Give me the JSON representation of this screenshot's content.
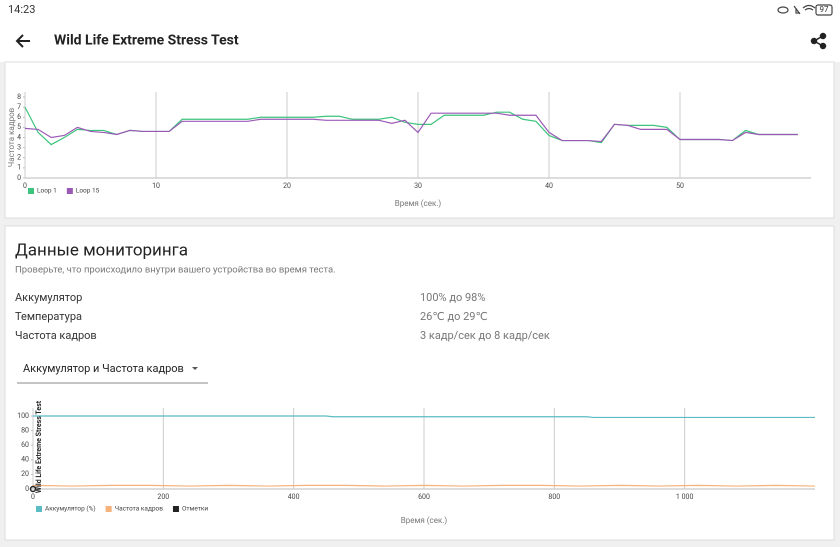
{
  "status_bar": {
    "time": "14:23",
    "battery": "97"
  },
  "header": {
    "title": "Wild Life Extreme Stress Test"
  },
  "monitoring": {
    "title": "Данные мониторинга",
    "subtitle": "Проверьте, что происходило внутри вашего устройства во время теста.",
    "rows": [
      [
        "Аккумулятор",
        "100% до 98%"
      ],
      [
        "Температура",
        "26℃ до 29℃"
      ],
      [
        "Частота кадров",
        "3 кадр/сек до 8 кадр/сек"
      ]
    ],
    "dropdown": "Аккумулятор и Частота кадров"
  },
  "chart_data": [
    {
      "type": "line",
      "x_label": "Время (сек.)",
      "y_label": "Частота кадров",
      "grid": true,
      "x": [
        0,
        1,
        2,
        3,
        4,
        5,
        6,
        7,
        8,
        9,
        10,
        11,
        12,
        13,
        14,
        15,
        16,
        17,
        18,
        19,
        20,
        21,
        22,
        23,
        24,
        25,
        26,
        27,
        28,
        29,
        30,
        31,
        32,
        33,
        34,
        35,
        36,
        37,
        38,
        39,
        40,
        41,
        42,
        43,
        44,
        45,
        46,
        47,
        48,
        49,
        50,
        51,
        52,
        53,
        54,
        55,
        56,
        57,
        58,
        59
      ],
      "xlim": [
        0,
        60
      ],
      "xticks": [
        0,
        10,
        20,
        30,
        40,
        50
      ],
      "ylim": [
        0,
        8
      ],
      "yticks": [
        0,
        1,
        2,
        3,
        4,
        5,
        6,
        7,
        8
      ],
      "series": [
        {
          "name": "Loop 1",
          "color": "#3cc47c",
          "values": [
            7,
            4.5,
            3.3,
            4,
            4.8,
            4.7,
            4.7,
            4.3,
            4.7,
            4.6,
            4.6,
            4.6,
            5.8,
            5.8,
            5.8,
            5.8,
            5.8,
            5.8,
            6,
            6,
            6,
            6,
            6,
            6.1,
            6.1,
            5.8,
            5.8,
            5.8,
            6,
            5.5,
            5.3,
            5.3,
            6.2,
            6.2,
            6.2,
            6.2,
            6.5,
            6.5,
            5.8,
            5.6,
            4.2,
            3.7,
            3.7,
            3.7,
            3.5,
            5.3,
            5.2,
            5.2,
            5.2,
            5,
            3.8,
            3.8,
            3.8,
            3.8,
            3.7,
            4.7,
            4.3,
            4.3,
            4.3,
            4.3
          ]
        },
        {
          "name": "Loop 15",
          "color": "#9b59b6",
          "values": [
            4.9,
            4.8,
            4,
            4.2,
            5,
            4.6,
            4.5,
            4.3,
            4.7,
            4.6,
            4.6,
            4.6,
            5.6,
            5.6,
            5.6,
            5.6,
            5.6,
            5.6,
            5.8,
            5.8,
            5.8,
            5.8,
            5.8,
            5.7,
            5.7,
            5.7,
            5.7,
            5.7,
            5.4,
            5.7,
            4.5,
            6.4,
            6.4,
            6.4,
            6.4,
            6.4,
            6.4,
            6.2,
            6.2,
            6.2,
            4.5,
            3.7,
            3.7,
            3.7,
            3.6,
            5.3,
            5.2,
            4.8,
            4.8,
            4.8,
            3.8,
            3.8,
            3.8,
            3.8,
            3.7,
            4.5,
            4.3,
            4.3,
            4.3,
            4.3
          ]
        }
      ]
    },
    {
      "type": "line",
      "x_label": "Время (сек.)",
      "annotation": "Wild Life Extreme Stress Test",
      "grid": true,
      "xlim": [
        0,
        1200
      ],
      "xticks": [
        0,
        200,
        400,
        600,
        800,
        {
          "value": 1000,
          "label": "1 000"
        }
      ],
      "ylim": [
        0,
        100
      ],
      "yticks": [
        0,
        20,
        40,
        60,
        80,
        100
      ],
      "series": [
        {
          "name": "Аккумулятор (%)",
          "color": "#5bbcc4",
          "x": [
            0,
            450,
            460,
            850,
            860,
            1200
          ],
          "values": [
            100,
            100,
            99,
            99,
            98,
            98
          ]
        },
        {
          "name": "Частота кадров",
          "color": "#f5b27a",
          "x": [
            0,
            60,
            120,
            180,
            240,
            300,
            360,
            420,
            480,
            540,
            600,
            660,
            720,
            780,
            840,
            900,
            960,
            1020,
            1080,
            1140,
            1200
          ],
          "values": [
            5,
            4,
            5,
            5,
            4,
            5,
            4,
            5,
            5,
            4,
            5,
            4,
            5,
            5,
            4,
            5,
            4,
            5,
            4,
            5,
            4
          ]
        },
        {
          "name": "Отметки",
          "color": "#222222",
          "type": "scatter",
          "x": [
            0
          ],
          "values": [
            0
          ]
        }
      ]
    }
  ]
}
